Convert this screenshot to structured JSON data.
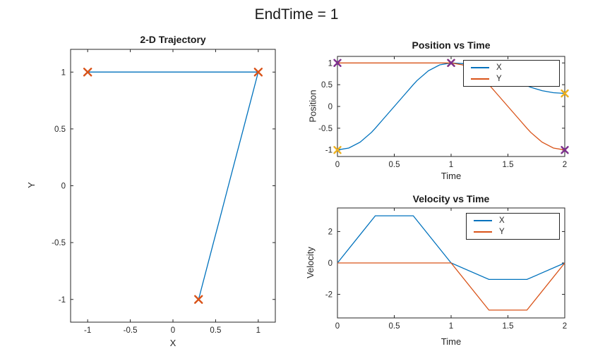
{
  "figure_title": "EndTime = 1",
  "colors": {
    "blue": "#0072BD",
    "orange": "#D95319",
    "yellow": "#EDB120",
    "purple": "#7E2F8E",
    "axis": "#262626"
  },
  "chart_data": [
    {
      "id": "trajectory",
      "type": "line",
      "title": "2-D Trajectory",
      "xlabel": "X",
      "ylabel": "Y",
      "xlim": [
        -1.2,
        1.2
      ],
      "ylim": [
        -1.2,
        1.2
      ],
      "xticks": [
        -1,
        -0.5,
        0,
        0.5,
        1
      ],
      "yticks": [
        -1,
        -0.5,
        0,
        0.5,
        1
      ],
      "grid": false,
      "legend": null,
      "series": [
        {
          "name": "trajectory",
          "color": "#0072BD",
          "points": [
            [
              -1,
              1
            ],
            [
              1,
              1
            ],
            [
              0.984,
              0.955
            ],
            [
              0.937,
              0.82
            ],
            [
              0.858,
              0.595
            ],
            [
              0.825,
              0.5
            ],
            [
              0.755,
              0.3
            ],
            [
              0.65,
              0
            ],
            [
              0.545,
              -0.3
            ],
            [
              0.475,
              -0.5
            ],
            [
              0.442,
              -0.595
            ],
            [
              0.363,
              -0.82
            ],
            [
              0.316,
              -0.955
            ],
            [
              0.3,
              -1
            ]
          ]
        }
      ],
      "markers": [
        {
          "name": "waypoints",
          "shape": "x",
          "color": "#D95319",
          "size": 5,
          "points": [
            [
              -1,
              1
            ],
            [
              1,
              1
            ],
            [
              0.3,
              -1
            ]
          ]
        }
      ]
    },
    {
      "id": "position",
      "type": "line",
      "title": "Position vs Time",
      "xlabel": "Time",
      "ylabel": "Position",
      "xlim": [
        0,
        2
      ],
      "ylim": [
        -1.15,
        1.15
      ],
      "xticks": [
        0,
        0.5,
        1,
        1.5,
        2
      ],
      "yticks": [
        -1,
        -0.5,
        0,
        0.5,
        1
      ],
      "grid": false,
      "legend": {
        "position": "top-right",
        "entries": [
          "X",
          "Y"
        ]
      },
      "series": [
        {
          "name": "X",
          "color": "#0072BD",
          "points": [
            [
              0,
              -1
            ],
            [
              0.1,
              -0.955
            ],
            [
              0.2,
              -0.82
            ],
            [
              0.3,
              -0.595
            ],
            [
              0.333,
              -0.5
            ],
            [
              0.4,
              -0.3
            ],
            [
              0.5,
              0
            ],
            [
              0.6,
              0.3
            ],
            [
              0.667,
              0.5
            ],
            [
              0.7,
              0.595
            ],
            [
              0.8,
              0.82
            ],
            [
              0.9,
              0.955
            ],
            [
              1,
              1
            ],
            [
              1.1,
              0.984
            ],
            [
              1.2,
              0.937
            ],
            [
              1.3,
              0.858
            ],
            [
              1.333,
              0.825
            ],
            [
              1.4,
              0.755
            ],
            [
              1.5,
              0.65
            ],
            [
              1.6,
              0.545
            ],
            [
              1.667,
              0.475
            ],
            [
              1.7,
              0.442
            ],
            [
              1.8,
              0.363
            ],
            [
              1.9,
              0.316
            ],
            [
              2,
              0.3
            ]
          ]
        },
        {
          "name": "Y",
          "color": "#D95319",
          "points": [
            [
              0,
              1
            ],
            [
              1,
              1
            ],
            [
              1.1,
              0.955
            ],
            [
              1.2,
              0.82
            ],
            [
              1.3,
              0.595
            ],
            [
              1.333,
              0.5
            ],
            [
              1.4,
              0.3
            ],
            [
              1.5,
              0
            ],
            [
              1.6,
              -0.3
            ],
            [
              1.667,
              -0.5
            ],
            [
              1.7,
              -0.595
            ],
            [
              1.8,
              -0.82
            ],
            [
              1.9,
              -0.955
            ],
            [
              2,
              -1
            ]
          ]
        }
      ],
      "markers": [
        {
          "name": "x-waypoints",
          "shape": "x",
          "color": "#EDB120",
          "size": 4.5,
          "points": [
            [
              0,
              -1
            ],
            [
              1,
              1
            ],
            [
              2,
              0.3
            ]
          ]
        },
        {
          "name": "y-waypoints",
          "shape": "x",
          "color": "#7E2F8E",
          "size": 4.5,
          "points": [
            [
              0,
              1
            ],
            [
              1,
              1
            ],
            [
              2,
              -1
            ]
          ]
        }
      ]
    },
    {
      "id": "velocity",
      "type": "line",
      "title": "Velocity vs Time",
      "xlabel": "Time",
      "ylabel": "Velocity",
      "xlim": [
        0,
        2
      ],
      "ylim": [
        -3.5,
        3.5
      ],
      "xticks": [
        0,
        0.5,
        1,
        1.5,
        2
      ],
      "yticks": [
        -2,
        0,
        2
      ],
      "grid": false,
      "legend": {
        "position": "top-right",
        "entries": [
          "X",
          "Y"
        ]
      },
      "series": [
        {
          "name": "X",
          "color": "#0072BD",
          "points": [
            [
              0,
              0
            ],
            [
              0.333,
              3
            ],
            [
              0.667,
              3
            ],
            [
              1,
              0
            ],
            [
              1.333,
              -1.05
            ],
            [
              1.667,
              -1.05
            ],
            [
              2,
              0
            ]
          ]
        },
        {
          "name": "Y",
          "color": "#D95319",
          "points": [
            [
              0,
              0
            ],
            [
              1,
              0
            ],
            [
              1.333,
              -3
            ],
            [
              1.667,
              -3
            ],
            [
              2,
              0
            ]
          ]
        }
      ],
      "markers": []
    }
  ]
}
